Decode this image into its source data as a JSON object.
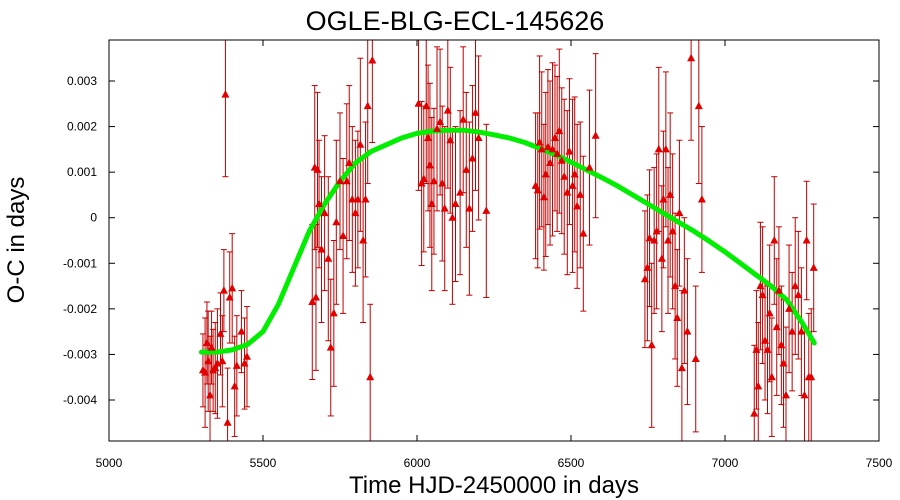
{
  "chart_data": {
    "type": "scatter",
    "title": "OGLE-BLG-ECL-145626",
    "xlabel": "Time HJD-2450000 in days",
    "ylabel": "O-C in days",
    "xlim": [
      5000,
      7500
    ],
    "ylim": [
      -0.0049,
      0.0039
    ],
    "xticks": [
      5000,
      5500,
      6000,
      6500,
      7000,
      7500
    ],
    "yticks": [
      -0.004,
      -0.003,
      -0.002,
      -0.001,
      0,
      0.001,
      0.002,
      0.003
    ],
    "ytick_labels": [
      "-0.004",
      "-0.003",
      "-0.002",
      "-0.001",
      "0",
      "0.001",
      "0.002",
      "0.003"
    ],
    "grid": false,
    "colors": {
      "points": "#e00000",
      "errorbars": "#c00000",
      "fit": "#00ee00"
    },
    "series": [
      {
        "kind": "points_with_errorbars",
        "marker": "triangle",
        "x": [
          5305,
          5312,
          5318,
          5322,
          5328,
          5333,
          5338,
          5345,
          5352,
          5362,
          5368,
          5373,
          5378,
          5385,
          5392,
          5400,
          5408,
          5415,
          5430,
          5440,
          5448,
          5660,
          5668,
          5672,
          5677,
          5682,
          5690,
          5700,
          5712,
          5720,
          5730,
          5738,
          5750,
          5760,
          5772,
          5780,
          5790,
          5800,
          5808,
          5816,
          5825,
          5833,
          5840,
          5848,
          5855,
          6005,
          6015,
          6022,
          6030,
          6036,
          6042,
          6048,
          6055,
          6065,
          6075,
          6082,
          6090,
          6100,
          6108,
          6115,
          6125,
          6140,
          6150,
          6160,
          6170,
          6180,
          6190,
          6200,
          6225,
          6385,
          6392,
          6398,
          6405,
          6412,
          6418,
          6425,
          6432,
          6440,
          6448,
          6455,
          6462,
          6470,
          6478,
          6488,
          6495,
          6505,
          6512,
          6520,
          6530,
          6540,
          6560,
          6580,
          6740,
          6748,
          6755,
          6762,
          6770,
          6778,
          6785,
          6795,
          6800,
          6808,
          6815,
          6822,
          6830,
          6838,
          6845,
          6852,
          6860,
          6868,
          6878,
          6890,
          6905,
          6915,
          6925,
          7095,
          7102,
          7108,
          7115,
          7122,
          7130,
          7138,
          7145,
          7152,
          7160,
          7168,
          7175,
          7183,
          7190,
          7198,
          7208,
          7218,
          7228,
          7238,
          7248,
          7258,
          7265,
          7272,
          7280,
          7288
        ],
        "y": [
          -0.00335,
          -0.0034,
          -0.00275,
          -0.00315,
          -0.0039,
          -0.00285,
          -0.00335,
          -0.0033,
          -0.0032,
          -0.00255,
          -0.00315,
          -0.0016,
          0.0027,
          -0.0045,
          -0.00175,
          -0.00155,
          -0.0037,
          -0.00325,
          -0.0025,
          -0.0032,
          -0.00305,
          -0.00185,
          0.0011,
          -0.00175,
          0.00105,
          0.0003,
          -0.0007,
          0.0001,
          -0.0009,
          -0.00285,
          -0.0021,
          -0.0001,
          0.0008,
          -0.0004,
          0.0008,
          0.0012,
          0.0004,
          0.0001,
          0.0004,
          0.0016,
          -0.0005,
          0.0004,
          0.00245,
          -0.0035,
          0.00345,
          0.0025,
          0.00075,
          0.00085,
          0.00245,
          0.00175,
          0.00115,
          0.0003,
          0.0008,
          0.00195,
          0.0021,
          0.00075,
          0.0002,
          0.00235,
          0.0017,
          0.0,
          0.0003,
          0.00055,
          0.00215,
          0.00105,
          0.0002,
          0.0013,
          0.0023,
          0.00175,
          0.00015,
          0.0007,
          0.0006,
          0.00165,
          0.0015,
          0.00045,
          0.00095,
          0.00155,
          0.0012,
          0.0015,
          0.00175,
          0.0014,
          0.0019,
          0.00125,
          0.0009,
          0.00055,
          0.00145,
          0.0007,
          0.00095,
          0.00025,
          0.0005,
          -0.00035,
          0.0011,
          0.0018,
          -0.00135,
          -0.0011,
          -0.00045,
          -0.0028,
          -0.0005,
          -0.0003,
          0.0015,
          -0.0009,
          0.0004,
          0.0015,
          -0.0005,
          0.0005,
          -0.0003,
          -0.0015,
          -0.0022,
          0.0001,
          -0.0033,
          -0.0016,
          -0.0025,
          0.0035,
          -0.0031,
          0.00245,
          0.0004,
          -0.0043,
          -0.0029,
          -0.0037,
          -0.0015,
          -0.0017,
          -0.0027,
          -0.0029,
          -0.0021,
          -0.0035,
          -0.0005,
          -0.0024,
          -0.0016,
          -0.0028,
          -0.0032,
          -0.0039,
          -0.002,
          -0.0025,
          -0.0015,
          -0.0017,
          -0.0025,
          -0.0039,
          -0.0005,
          -0.0035,
          -0.0035,
          -0.0011
        ],
        "err": [
          0.0008,
          0.0012,
          0.0009,
          0.0011,
          0.0013,
          0.0008,
          0.0009,
          0.001,
          0.0012,
          0.0009,
          0.001,
          0.0009,
          0.0018,
          0.0012,
          0.001,
          0.0012,
          0.0011,
          0.0011,
          0.0009,
          0.001,
          0.0011,
          0.0017,
          0.0018,
          0.0016,
          0.0017,
          0.0014,
          0.0016,
          0.0017,
          0.0018,
          0.0015,
          0.0016,
          0.0018,
          0.0015,
          0.0017,
          0.0017,
          0.0017,
          0.0016,
          0.0016,
          0.0015,
          0.0019,
          0.0018,
          0.0017,
          0.0017,
          0.0016,
          0.0018,
          0.0019,
          0.0018,
          0.0016,
          0.0017,
          0.0016,
          0.0018,
          0.0019,
          0.0016,
          0.0018,
          0.0016,
          0.0017,
          0.0018,
          0.0017,
          0.0016,
          0.0019,
          0.0017,
          0.0018,
          0.0016,
          0.0017,
          0.0019,
          0.0016,
          0.0017,
          0.0018,
          0.0019,
          0.0016,
          0.0017,
          0.0019,
          0.0017,
          0.0016,
          0.0018,
          0.0017,
          0.0018,
          0.0019,
          0.0016,
          0.0017,
          0.0018,
          0.0016,
          0.0017,
          0.0018,
          0.0016,
          0.0019,
          0.0017,
          0.0018,
          0.0016,
          0.0017,
          0.0017,
          0.0018,
          0.0015,
          0.0016,
          0.0015,
          0.0018,
          0.0016,
          0.0017,
          0.0018,
          0.0016,
          0.0015,
          0.0017,
          0.0016,
          0.0018,
          0.0017,
          0.0016,
          0.0015,
          0.0016,
          0.0017,
          0.0016,
          0.0016,
          0.0018,
          0.0016,
          0.0017,
          0.0016,
          0.0015,
          0.0013,
          0.0014,
          0.0014,
          0.0015,
          0.0013,
          0.0014,
          0.0015,
          0.0013,
          0.0014,
          0.0015,
          0.0014,
          0.0013,
          0.0014,
          0.0015,
          0.0014,
          0.0013,
          0.0015,
          0.0014,
          0.0014,
          0.0015,
          0.0013,
          0.0014,
          0.0015,
          0.0014
        ]
      },
      {
        "kind": "fit_curve",
        "x": [
          5300,
          5350,
          5400,
          5450,
          5500,
          5550,
          5600,
          5650,
          5700,
          5750,
          5800,
          5850,
          5900,
          5950,
          6000,
          6050,
          6100,
          6150,
          6200,
          6250,
          6300,
          6350,
          6400,
          6450,
          6500,
          6550,
          6600,
          6650,
          6700,
          6750,
          6800,
          6850,
          6900,
          6950,
          7000,
          7050,
          7100,
          7150,
          7200,
          7250,
          7290
        ],
        "y": [
          -0.00295,
          -0.00295,
          -0.0029,
          -0.00278,
          -0.0025,
          -0.0019,
          -0.0011,
          -0.0003,
          0.0003,
          0.0008,
          0.0012,
          0.00145,
          0.0016,
          0.00175,
          0.00185,
          0.0019,
          0.00192,
          0.00192,
          0.00188,
          0.00182,
          0.00175,
          0.00165,
          0.00152,
          0.00138,
          0.00122,
          0.00105,
          0.00088,
          0.0007,
          0.0005,
          0.0003,
          0.0001,
          -0.0001,
          -0.0003,
          -0.00052,
          -0.00075,
          -0.001,
          -0.00125,
          -0.0015,
          -0.0018,
          -0.0023,
          -0.00275
        ]
      }
    ]
  }
}
